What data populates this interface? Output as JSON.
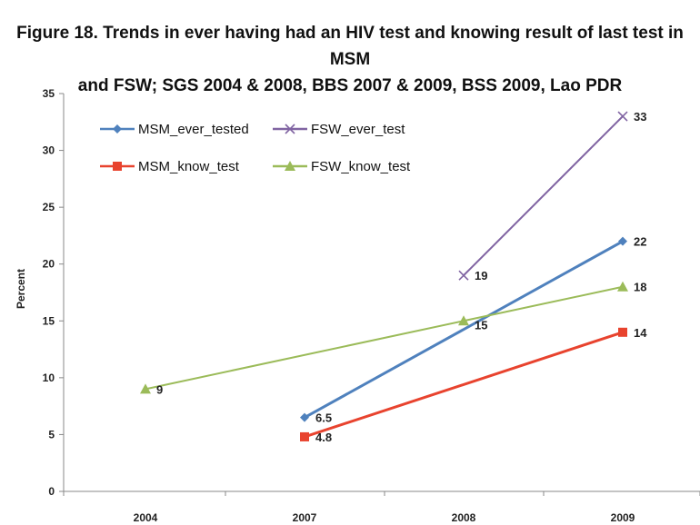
{
  "chart_data": {
    "type": "line",
    "title_line1": "Figure 18. Trends in ever having had an HIV test and knowing result of last test in MSM",
    "title_line2": "and FSW; SGS 2004 & 2008, BBS 2007 & 2009, BSS 2009, Lao PDR",
    "xlabel": "",
    "ylabel": "Percent",
    "categories": [
      "2004",
      "2007",
      "2008",
      "2009"
    ],
    "ylim": [
      0,
      35
    ],
    "yticks": [
      0,
      5,
      10,
      15,
      20,
      25,
      30,
      35
    ],
    "legend_position": "top-left",
    "series": [
      {
        "name": "MSM_ever_tested",
        "color": "#4f81bd",
        "marker": "diamond",
        "values": [
          null,
          6.5,
          null,
          22
        ],
        "labels": [
          null,
          "6.5",
          null,
          "22"
        ]
      },
      {
        "name": "FSW_ever_test",
        "color": "#8064a2",
        "marker": "x",
        "values": [
          null,
          null,
          19,
          33
        ],
        "labels": [
          null,
          null,
          "19",
          "33"
        ]
      },
      {
        "name": "MSM_know_test",
        "color": "#e8432e",
        "marker": "square",
        "values": [
          null,
          4.8,
          null,
          14
        ],
        "labels": [
          null,
          "4.8",
          null,
          "14"
        ]
      },
      {
        "name": "FSW_know_test",
        "color": "#9bbb59",
        "marker": "triangle",
        "values": [
          9,
          null,
          15,
          18
        ],
        "labels": [
          "9",
          null,
          "15",
          "18"
        ]
      }
    ]
  }
}
